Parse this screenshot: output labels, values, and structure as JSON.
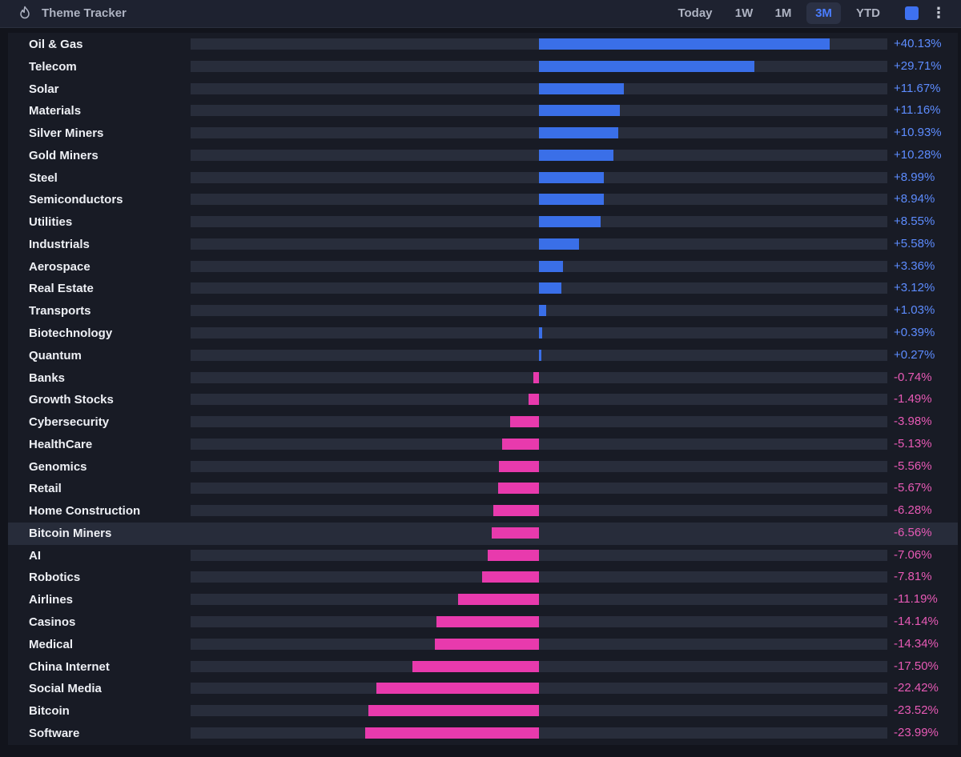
{
  "header": {
    "title": "Theme Tracker",
    "icon": "flame-icon",
    "tabs": [
      {
        "label": "Today",
        "active": false
      },
      {
        "label": "1W",
        "active": false
      },
      {
        "label": "1M",
        "active": false
      },
      {
        "label": "3M",
        "active": true
      },
      {
        "label": "YTD",
        "active": false
      }
    ],
    "swatch_color": "#3e71f0"
  },
  "colors": {
    "positive": "#3a6fe8",
    "negative": "#e83aad",
    "positive_text": "#5d8cff",
    "negative_text": "#e85ab6"
  },
  "highlighted_row": "Bitcoin Miners",
  "themes": [
    {
      "name": "Oil & Gas",
      "value": 40.13,
      "label": "+40.13%"
    },
    {
      "name": "Telecom",
      "value": 29.71,
      "label": "+29.71%"
    },
    {
      "name": "Solar",
      "value": 11.67,
      "label": "+11.67%"
    },
    {
      "name": "Materials",
      "value": 11.16,
      "label": "+11.16%"
    },
    {
      "name": "Silver Miners",
      "value": 10.93,
      "label": "+10.93%"
    },
    {
      "name": "Gold Miners",
      "value": 10.28,
      "label": "+10.28%"
    },
    {
      "name": "Steel",
      "value": 8.99,
      "label": "+8.99%"
    },
    {
      "name": "Semiconductors",
      "value": 8.94,
      "label": "+8.94%"
    },
    {
      "name": "Utilities",
      "value": 8.55,
      "label": "+8.55%"
    },
    {
      "name": "Industrials",
      "value": 5.58,
      "label": "+5.58%"
    },
    {
      "name": "Aerospace",
      "value": 3.36,
      "label": "+3.36%"
    },
    {
      "name": "Real Estate",
      "value": 3.12,
      "label": "+3.12%"
    },
    {
      "name": "Transports",
      "value": 1.03,
      "label": "+1.03%"
    },
    {
      "name": "Biotechnology",
      "value": 0.39,
      "label": "+0.39%"
    },
    {
      "name": "Quantum",
      "value": 0.27,
      "label": "+0.27%"
    },
    {
      "name": "Banks",
      "value": -0.74,
      "label": "-0.74%"
    },
    {
      "name": "Growth Stocks",
      "value": -1.49,
      "label": "-1.49%"
    },
    {
      "name": "Cybersecurity",
      "value": -3.98,
      "label": "-3.98%"
    },
    {
      "name": "HealthCare",
      "value": -5.13,
      "label": "-5.13%"
    },
    {
      "name": "Genomics",
      "value": -5.56,
      "label": "-5.56%"
    },
    {
      "name": "Retail",
      "value": -5.67,
      "label": "-5.67%"
    },
    {
      "name": "Home Construction",
      "value": -6.28,
      "label": "-6.28%"
    },
    {
      "name": "Bitcoin Miners",
      "value": -6.56,
      "label": "-6.56%"
    },
    {
      "name": "AI",
      "value": -7.06,
      "label": "-7.06%"
    },
    {
      "name": "Robotics",
      "value": -7.81,
      "label": "-7.81%"
    },
    {
      "name": "Airlines",
      "value": -11.19,
      "label": "-11.19%"
    },
    {
      "name": "Casinos",
      "value": -14.14,
      "label": "-14.14%"
    },
    {
      "name": "Medical",
      "value": -14.34,
      "label": "-14.34%"
    },
    {
      "name": "China Internet",
      "value": -17.5,
      "label": "-17.50%"
    },
    {
      "name": "Social Media",
      "value": -22.42,
      "label": "-22.42%"
    },
    {
      "name": "Bitcoin",
      "value": -23.52,
      "label": "-23.52%"
    },
    {
      "name": "Software",
      "value": -23.99,
      "label": "-23.99%"
    }
  ]
}
